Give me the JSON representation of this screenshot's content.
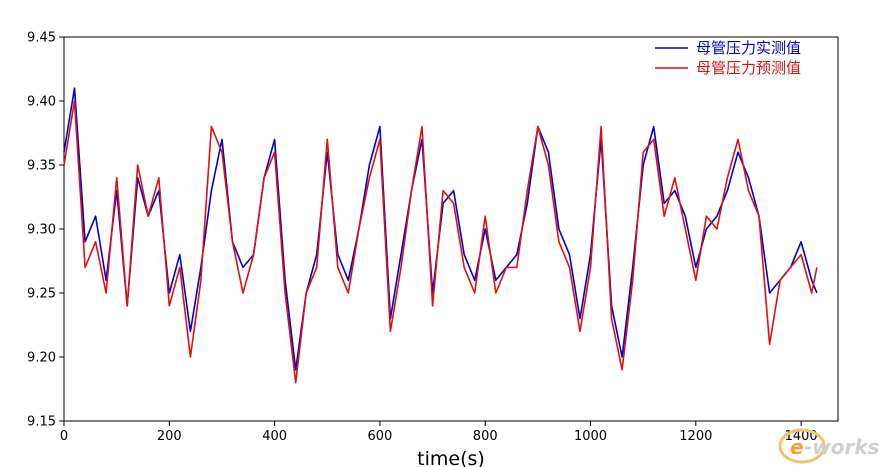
{
  "chart_data": {
    "type": "line",
    "title": "",
    "xlabel": "time(s)",
    "ylabel": "",
    "xlim": [
      0,
      1470
    ],
    "ylim": [
      9.15,
      9.45
    ],
    "xticks": [
      0,
      200,
      400,
      600,
      800,
      1000,
      1200,
      1400
    ],
    "yticks": [
      9.15,
      9.2,
      9.25,
      9.3,
      9.35,
      9.4,
      9.45
    ],
    "ytick_labels": [
      "9.15",
      "9.20",
      "9.25",
      "9.30",
      "9.35",
      "9.40",
      "9.45"
    ],
    "grid": false,
    "legend_position": "top-right",
    "x": [
      0,
      20,
      40,
      60,
      80,
      100,
      120,
      140,
      160,
      180,
      200,
      220,
      240,
      260,
      280,
      300,
      320,
      340,
      360,
      380,
      400,
      420,
      440,
      460,
      480,
      500,
      520,
      540,
      560,
      580,
      600,
      620,
      640,
      660,
      680,
      700,
      720,
      740,
      760,
      780,
      800,
      820,
      840,
      860,
      880,
      900,
      920,
      940,
      960,
      980,
      1000,
      1020,
      1040,
      1060,
      1080,
      1100,
      1120,
      1140,
      1160,
      1180,
      1200,
      1220,
      1240,
      1260,
      1280,
      1300,
      1320,
      1340,
      1360,
      1380,
      1400,
      1420,
      1430
    ],
    "series": [
      {
        "name": "母管压力实测值",
        "color": "#0000cc",
        "values": [
          9.36,
          9.41,
          9.29,
          9.31,
          9.26,
          9.33,
          9.24,
          9.34,
          9.31,
          9.33,
          9.25,
          9.28,
          9.22,
          9.27,
          9.33,
          9.37,
          9.29,
          9.27,
          9.28,
          9.34,
          9.37,
          9.26,
          9.19,
          9.25,
          9.28,
          9.36,
          9.28,
          9.26,
          9.3,
          9.35,
          9.38,
          9.23,
          9.28,
          9.33,
          9.37,
          9.25,
          9.32,
          9.33,
          9.28,
          9.26,
          9.3,
          9.26,
          9.27,
          9.28,
          9.32,
          9.38,
          9.36,
          9.3,
          9.28,
          9.23,
          9.28,
          9.37,
          9.24,
          9.2,
          9.27,
          9.35,
          9.38,
          9.32,
          9.33,
          9.31,
          9.27,
          9.3,
          9.31,
          9.33,
          9.36,
          9.34,
          9.31,
          9.25,
          9.26,
          9.27,
          9.29,
          9.26,
          9.25
        ]
      },
      {
        "name": "母管压力预测值",
        "color": "#dd1111",
        "values": [
          9.35,
          9.4,
          9.27,
          9.29,
          9.25,
          9.34,
          9.24,
          9.35,
          9.31,
          9.34,
          9.24,
          9.27,
          9.2,
          9.26,
          9.38,
          9.36,
          9.29,
          9.25,
          9.28,
          9.34,
          9.36,
          9.25,
          9.18,
          9.25,
          9.27,
          9.37,
          9.27,
          9.25,
          9.3,
          9.34,
          9.37,
          9.22,
          9.27,
          9.33,
          9.38,
          9.24,
          9.33,
          9.32,
          9.27,
          9.25,
          9.31,
          9.25,
          9.27,
          9.27,
          9.33,
          9.38,
          9.35,
          9.29,
          9.27,
          9.22,
          9.27,
          9.38,
          9.23,
          9.19,
          9.26,
          9.36,
          9.37,
          9.31,
          9.34,
          9.3,
          9.26,
          9.31,
          9.3,
          9.34,
          9.37,
          9.33,
          9.31,
          9.21,
          9.26,
          9.27,
          9.28,
          9.25,
          9.27
        ]
      }
    ]
  },
  "watermark": {
    "text_e": "e",
    "text_works": "-works",
    "color_e": "#f0a030",
    "color_works": "#cfcfcf"
  }
}
